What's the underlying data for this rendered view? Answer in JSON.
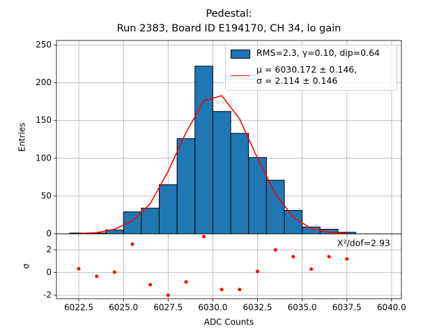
{
  "chart_data": [
    {
      "type": "histogram",
      "title": "Pedestal:\nRun 2383, Board ID E194170, CH 34, lo gain",
      "ylabel": "Entries",
      "name": "RMS=2.3, γ=0.10, dip=0.64",
      "color": "#1f77b4",
      "bins": [
        6022,
        6023,
        6024,
        6025,
        6026,
        6027,
        6028,
        6029,
        6030,
        6031,
        6032,
        6033,
        6034,
        6035,
        6036,
        6037,
        6038
      ],
      "values": [
        1,
        1,
        5,
        29,
        34,
        65,
        126,
        222,
        162,
        133,
        101,
        71,
        31,
        9,
        6,
        2
      ],
      "line": {
        "name": "μ = 6030.172 ± 0.146,\nσ = 2.114 ± 0.146",
        "color": "#ff0000",
        "x": [
          6022.5,
          6023.5,
          6024.5,
          6025.5,
          6026.5,
          6027.5,
          6028.5,
          6029.5,
          6030.5,
          6031.5,
          6032.5,
          6033.5,
          6034.5,
          6035.5,
          6036.5,
          6037.5
        ],
        "values": [
          0.3,
          1.5,
          6,
          17,
          40,
          83,
          134,
          176,
          183,
          152,
          100,
          53,
          22,
          7,
          2,
          0.4
        ]
      },
      "xlim": [
        6021.25,
        6040.55
      ],
      "xticks": [
        6022.5,
        6025,
        6027.5,
        6030,
        6032.5,
        6035,
        6037.5,
        6040
      ],
      "ylim": [
        0,
        256
      ],
      "yticks": [
        0,
        50,
        100,
        150,
        200,
        250
      ],
      "grid": true
    },
    {
      "type": "scatter",
      "xlabel": "ADC Counts",
      "ylabel": "σ",
      "annotation": "X²/dof=2.93",
      "color": "#ff0000",
      "x": [
        6022.5,
        6023.5,
        6024.5,
        6025.5,
        6026.5,
        6027.5,
        6028.5,
        6029.5,
        6030.5,
        6031.5,
        6032.5,
        6033.5,
        6034.5,
        6035.5,
        6036.5,
        6037.5
      ],
      "values": [
        0.34,
        -0.34,
        0.03,
        2.5,
        -1.08,
        -2.0,
        -0.83,
        3.17,
        -1.5,
        -1.5,
        0.1,
        2.0,
        1.4,
        0.3,
        1.4,
        1.2
      ],
      "xlim": [
        6021.25,
        6040.55
      ],
      "xticks": [
        6022.5,
        {
          "value": 6025,
          "label": "6025.0"
        },
        6027.5,
        {
          "value": 6030,
          "label": "6030.0"
        },
        6032.5,
        {
          "value": 6035,
          "label": "6035.0"
        },
        6037.5,
        {
          "value": 6040,
          "label": "6040.0"
        }
      ],
      "ylim": [
        -2.31,
        3.42
      ],
      "yticks": [
        -2,
        0,
        2
      ],
      "grid": true
    }
  ]
}
